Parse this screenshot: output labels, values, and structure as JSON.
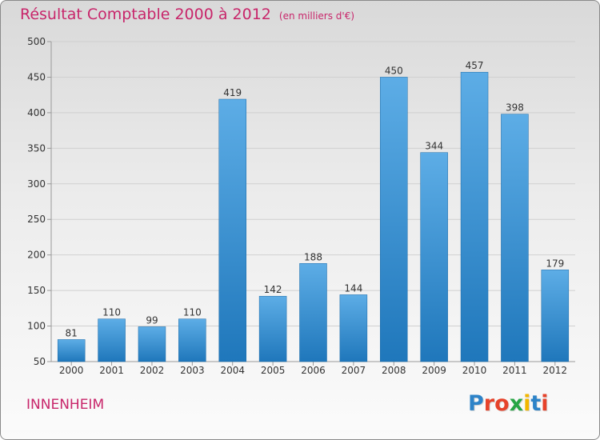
{
  "header": {
    "title": "Résultat Comptable 2000 à 2012",
    "subtitle": "(en milliers d'€)"
  },
  "footer": {
    "commune": "INNENHEIM",
    "logo_text": "Proxiti"
  },
  "colors": {
    "title": "#c8256a",
    "bar_top": "#5dade6",
    "bar_bottom": "#1f77bb",
    "logo": [
      "#2d83c8",
      "#e6422a",
      "#e6422a",
      "#27a545",
      "#f2b600",
      "#2d83c8",
      "#e6422a"
    ]
  },
  "chart_data": {
    "type": "bar",
    "categories": [
      "2000",
      "2001",
      "2002",
      "2003",
      "2004",
      "2005",
      "2006",
      "2007",
      "2008",
      "2009",
      "2010",
      "2011",
      "2012"
    ],
    "values": [
      81,
      110,
      99,
      110,
      419,
      142,
      188,
      144,
      450,
      344,
      457,
      398,
      179
    ],
    "ylim": [
      50,
      500
    ],
    "yticks": [
      50,
      100,
      150,
      200,
      250,
      300,
      350,
      400,
      450,
      500
    ],
    "grid": true,
    "legend": "none"
  }
}
